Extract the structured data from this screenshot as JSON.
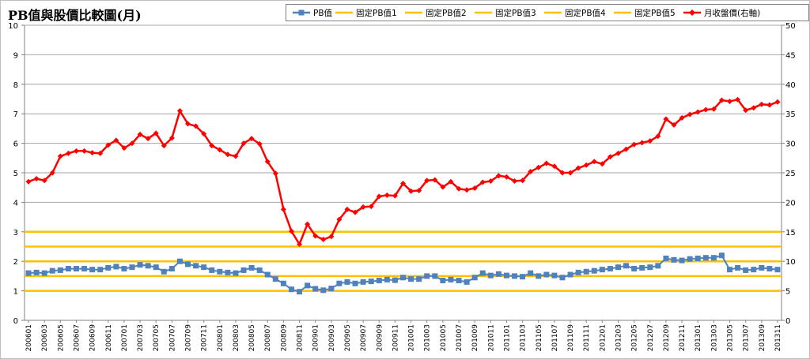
{
  "chart_data": {
    "type": "line",
    "title": "PB值與股價比較圖(月)",
    "y_left": {
      "min": 0,
      "max": 10,
      "ticks": [
        "0",
        "1",
        "2",
        "3",
        "4",
        "5",
        "6",
        "7",
        "8",
        "9",
        "10"
      ]
    },
    "y_right": {
      "min": 0,
      "max": 50,
      "ticks": [
        "0",
        "5",
        "10",
        "15",
        "20",
        "25",
        "30",
        "35",
        "40",
        "45",
        "50"
      ]
    },
    "grid": true,
    "legend_position": "top-right",
    "categories": [
      "200601",
      "200602",
      "200603",
      "200604",
      "200605",
      "200606",
      "200607",
      "200608",
      "200609",
      "200610",
      "200611",
      "200612",
      "200701",
      "200702",
      "200703",
      "200704",
      "200705",
      "200706",
      "200707",
      "200708",
      "200709",
      "200710",
      "200711",
      "200712",
      "200801",
      "200802",
      "200803",
      "200804",
      "200805",
      "200806",
      "200807",
      "200808",
      "200809",
      "200810",
      "200811",
      "200812",
      "200901",
      "200902",
      "200903",
      "200904",
      "200905",
      "200906",
      "200907",
      "200908",
      "200909",
      "200910",
      "200911",
      "200912",
      "201001",
      "201002",
      "201003",
      "201004",
      "201005",
      "201006",
      "201007",
      "201008",
      "201009",
      "201010",
      "201011",
      "201012",
      "201101",
      "201102",
      "201103",
      "201104",
      "201105",
      "201106",
      "201107",
      "201108",
      "201109",
      "201110",
      "201111",
      "201112",
      "201201",
      "201202",
      "201203",
      "201204",
      "201205",
      "201206",
      "201207",
      "201208",
      "201209",
      "201210",
      "201211",
      "201212",
      "201301",
      "201302",
      "201303",
      "201304",
      "201305",
      "201306",
      "201307",
      "201308",
      "201309",
      "201310",
      "201311"
    ],
    "x_tick_labels": [
      "200601",
      "200603",
      "200605",
      "200607",
      "200609",
      "200611",
      "200701",
      "200703",
      "200705",
      "200707",
      "200709",
      "200711",
      "200801",
      "200803",
      "200805",
      "200807",
      "200809",
      "200811",
      "200901",
      "200903",
      "200905",
      "200907",
      "200909",
      "200911",
      "201001",
      "201003",
      "201005",
      "201007",
      "201009",
      "201011",
      "201101",
      "201103",
      "201105",
      "201107",
      "201109",
      "201111",
      "201201",
      "201203",
      "201205",
      "201207",
      "201209",
      "201211",
      "201301",
      "201303",
      "201305",
      "201307",
      "201309",
      "201311"
    ],
    "series": [
      {
        "name": "PB值",
        "axis": "left",
        "color": "#4f81bd",
        "marker": "square",
        "values": [
          1.6,
          1.62,
          1.6,
          1.68,
          1.7,
          1.75,
          1.75,
          1.75,
          1.72,
          1.72,
          1.78,
          1.82,
          1.75,
          1.8,
          1.88,
          1.85,
          1.8,
          1.65,
          1.75,
          2.0,
          1.9,
          1.85,
          1.8,
          1.7,
          1.65,
          1.62,
          1.6,
          1.7,
          1.78,
          1.7,
          1.55,
          1.4,
          1.25,
          1.05,
          0.97,
          1.18,
          1.07,
          1.02,
          1.08,
          1.25,
          1.3,
          1.25,
          1.3,
          1.32,
          1.35,
          1.38,
          1.36,
          1.45,
          1.4,
          1.4,
          1.5,
          1.5,
          1.35,
          1.38,
          1.35,
          1.3,
          1.45,
          1.6,
          1.52,
          1.57,
          1.52,
          1.5,
          1.48,
          1.6,
          1.5,
          1.55,
          1.52,
          1.45,
          1.55,
          1.62,
          1.65,
          1.68,
          1.72,
          1.75,
          1.8,
          1.85,
          1.75,
          1.78,
          1.8,
          1.85,
          2.1,
          2.05,
          2.03,
          2.08,
          2.1,
          2.12,
          2.12,
          2.2,
          1.72,
          1.78,
          1.7,
          1.72,
          1.78,
          1.75,
          1.72
        ]
      },
      {
        "name": "固定PB值1",
        "axis": "left",
        "color": "#ffc000",
        "value": 1.0
      },
      {
        "name": "固定PB值2",
        "axis": "left",
        "color": "#ffc000",
        "value": 1.5
      },
      {
        "name": "固定PB值3",
        "axis": "left",
        "color": "#ffc000",
        "value": 2.0
      },
      {
        "name": "固定PB值4",
        "axis": "left",
        "color": "#ffc000",
        "value": 2.5
      },
      {
        "name": "固定PB值5",
        "axis": "left",
        "color": "#ffc000",
        "value": 3.0
      },
      {
        "name": "月收盤價(右軸)",
        "axis": "right",
        "color": "#ff0000",
        "marker": "diamond",
        "values": [
          23.5,
          24,
          23.7,
          25,
          27.8,
          28.3,
          28.7,
          28.7,
          28.4,
          28.3,
          29.7,
          30.5,
          29.2,
          30,
          31.5,
          30.8,
          31.7,
          29.6,
          30.9,
          35.5,
          33.3,
          32.9,
          31.6,
          29.6,
          28.9,
          28.1,
          27.8,
          30,
          30.8,
          29.9,
          26.9,
          24.9,
          18.8,
          15.1,
          12.9,
          16.3,
          14.3,
          13.7,
          14.2,
          17.1,
          18.8,
          18.3,
          19.2,
          19.3,
          21,
          21.2,
          21.1,
          23.2,
          21.9,
          22,
          23.7,
          23.8,
          22.6,
          23.5,
          22.3,
          22.1,
          22.4,
          23.4,
          23.6,
          24.5,
          24.3,
          23.6,
          23.7,
          25.2,
          25.9,
          26.6,
          26.1,
          25,
          25,
          25.8,
          26.3,
          26.9,
          26.5,
          27.7,
          28.3,
          29,
          29.8,
          30.1,
          30.4,
          31.2,
          34.1,
          33.1,
          34.3,
          34.9,
          35.3,
          35.7,
          35.8,
          37.3,
          37.1,
          37.4,
          35.6,
          36,
          36.6,
          36.5,
          37
        ]
      }
    ]
  }
}
